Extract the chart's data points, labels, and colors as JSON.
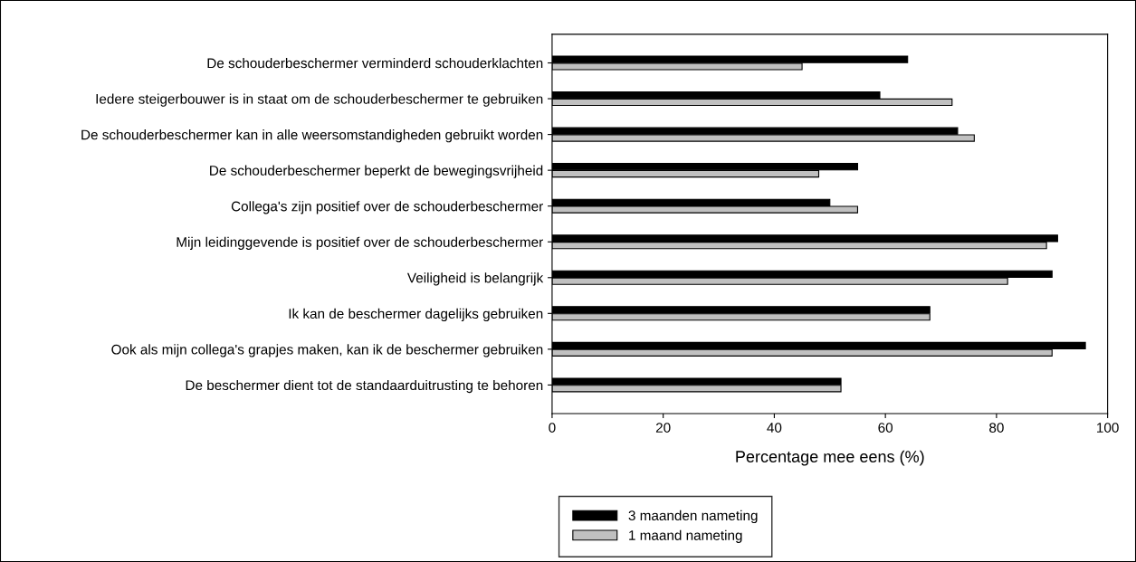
{
  "chart_data": {
    "type": "bar",
    "orientation": "horizontal",
    "xlabel": "Percentage mee eens (%)",
    "categories": [
      "De schouderbeschermer verminderd schouderklachten",
      "Iedere steigerbouwer is in staat om de schouderbeschermer te gebruiken",
      "De schouderbeschermer kan in alle weersomstandigheden gebruikt worden",
      "De schouderbeschermer beperkt de bewegingsvrijheid",
      "Collega's zijn positief over de schouderbeschermer",
      "Mijn leidinggevende is positief over de schouderbeschermer",
      "Veiligheid is belangrijk",
      "Ik kan de beschermer dagelijks gebruiken",
      "Ook als mijn collega's grapjes maken, kan ik de beschermer gebruiken",
      "De beschermer dient tot de standaarduitrusting te behoren"
    ],
    "series": [
      {
        "name": "3 maanden nameting",
        "color": "#000000",
        "values": [
          64,
          59,
          73,
          55,
          50,
          91,
          90,
          68,
          96,
          52
        ]
      },
      {
        "name": "1 maand nameting",
        "color": "#c0c0c0",
        "values": [
          45,
          72,
          76,
          48,
          55,
          89,
          82,
          68,
          90,
          52
        ]
      }
    ],
    "xlim": [
      0,
      100
    ],
    "xticks": [
      0,
      20,
      40,
      60,
      80,
      100
    ],
    "grid": false,
    "legend": "bottom left"
  }
}
